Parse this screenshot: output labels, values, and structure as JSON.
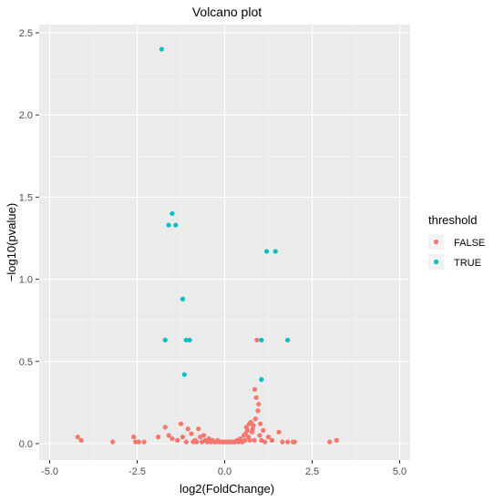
{
  "chart_data": {
    "type": "scatter",
    "title": "Volcano plot",
    "xlabel": "log2(FoldChange)",
    "ylabel": "−log10(pvalue)",
    "xlim": [
      -5.3,
      5.3
    ],
    "ylim": [
      -0.1,
      2.55
    ],
    "xticks": [
      -5.0,
      -2.5,
      0.0,
      2.5,
      5.0
    ],
    "xtick_labels": [
      "-5.0",
      "-2.5",
      "0.0",
      "2.5",
      "5.0"
    ],
    "yticks": [
      0.0,
      0.5,
      1.0,
      1.5,
      2.0,
      2.5
    ],
    "ytick_labels": [
      "0.0",
      "0.5",
      "1.0",
      "1.5",
      "2.0",
      "2.5"
    ],
    "grid": true,
    "legend": {
      "title": "threshold",
      "placement": "right",
      "entries": [
        {
          "label": "FALSE",
          "color": "#F8766D"
        },
        {
          "label": "TRUE",
          "color": "#00BFC4"
        }
      ]
    },
    "series": [
      {
        "name": "FALSE",
        "color": "#F8766D",
        "points": [
          [
            -4.2,
            0.04
          ],
          [
            -4.1,
            0.02
          ],
          [
            -3.2,
            0.01
          ],
          [
            -2.6,
            0.04
          ],
          [
            -2.55,
            0.01
          ],
          [
            -2.45,
            0.01
          ],
          [
            -2.3,
            0.01
          ],
          [
            -1.9,
            0.04
          ],
          [
            -1.7,
            0.1
          ],
          [
            -1.6,
            0.05
          ],
          [
            -1.5,
            0.03
          ],
          [
            -1.35,
            0.02
          ],
          [
            -1.25,
            0.12
          ],
          [
            -1.2,
            0.04
          ],
          [
            -1.1,
            0.01
          ],
          [
            -1.05,
            0.09
          ],
          [
            -0.95,
            0.06
          ],
          [
            -0.9,
            0.01
          ],
          [
            -0.85,
            0.02
          ],
          [
            -0.8,
            0.01
          ],
          [
            -0.75,
            0.09
          ],
          [
            -0.7,
            0.04
          ],
          [
            -0.65,
            0.01
          ],
          [
            -0.6,
            0.05
          ],
          [
            -0.55,
            0.02
          ],
          [
            -0.5,
            0.01
          ],
          [
            -0.45,
            0.03
          ],
          [
            -0.4,
            0.01
          ],
          [
            -0.35,
            0.02
          ],
          [
            -0.3,
            0.01
          ],
          [
            -0.25,
            0.01
          ],
          [
            -0.2,
            0.02
          ],
          [
            -0.15,
            0.01
          ],
          [
            -0.1,
            0.01
          ],
          [
            -0.05,
            0.01
          ],
          [
            0.0,
            0.01
          ],
          [
            0.05,
            0.01
          ],
          [
            0.1,
            0.01
          ],
          [
            0.15,
            0.01
          ],
          [
            0.2,
            0.01
          ],
          [
            0.25,
            0.01
          ],
          [
            0.3,
            0.01
          ],
          [
            0.35,
            0.02
          ],
          [
            0.4,
            0.01
          ],
          [
            0.45,
            0.03
          ],
          [
            0.5,
            0.01
          ],
          [
            0.55,
            0.05
          ],
          [
            0.58,
            0.02
          ],
          [
            0.6,
            0.06
          ],
          [
            0.62,
            0.1
          ],
          [
            0.65,
            0.08
          ],
          [
            0.68,
            0.04
          ],
          [
            0.7,
            0.12
          ],
          [
            0.72,
            0.02
          ],
          [
            0.75,
            0.13
          ],
          [
            0.78,
            0.07
          ],
          [
            0.8,
            0.09
          ],
          [
            0.82,
            0.11
          ],
          [
            0.85,
            0.02
          ],
          [
            0.86,
            0.33
          ],
          [
            0.88,
            0.15
          ],
          [
            0.9,
            0.28
          ],
          [
            0.92,
            0.63
          ],
          [
            0.95,
            0.2
          ],
          [
            0.97,
            0.24
          ],
          [
            1.0,
            0.05
          ],
          [
            1.02,
            0.12
          ],
          [
            1.05,
            0.02
          ],
          [
            1.1,
            0.08
          ],
          [
            1.15,
            0.01
          ],
          [
            1.25,
            0.04
          ],
          [
            1.35,
            0.02
          ],
          [
            1.55,
            0.07
          ],
          [
            1.65,
            0.01
          ],
          [
            1.8,
            0.01
          ],
          [
            1.95,
            0.01
          ],
          [
            2.0,
            0.01
          ],
          [
            3.0,
            0.01
          ],
          [
            3.2,
            0.02
          ]
        ]
      },
      {
        "name": "TRUE",
        "color": "#00BFC4",
        "points": [
          [
            -1.8,
            2.4
          ],
          [
            -1.5,
            1.4
          ],
          [
            -1.6,
            1.33
          ],
          [
            -1.4,
            1.33
          ],
          [
            -1.2,
            0.88
          ],
          [
            -1.7,
            0.63
          ],
          [
            -1.1,
            0.63
          ],
          [
            -1.0,
            0.63
          ],
          [
            -1.15,
            0.42
          ],
          [
            1.05,
            0.63
          ],
          [
            1.2,
            1.17
          ],
          [
            1.45,
            1.17
          ],
          [
            1.8,
            0.63
          ],
          [
            1.05,
            0.39
          ]
        ]
      }
    ]
  }
}
